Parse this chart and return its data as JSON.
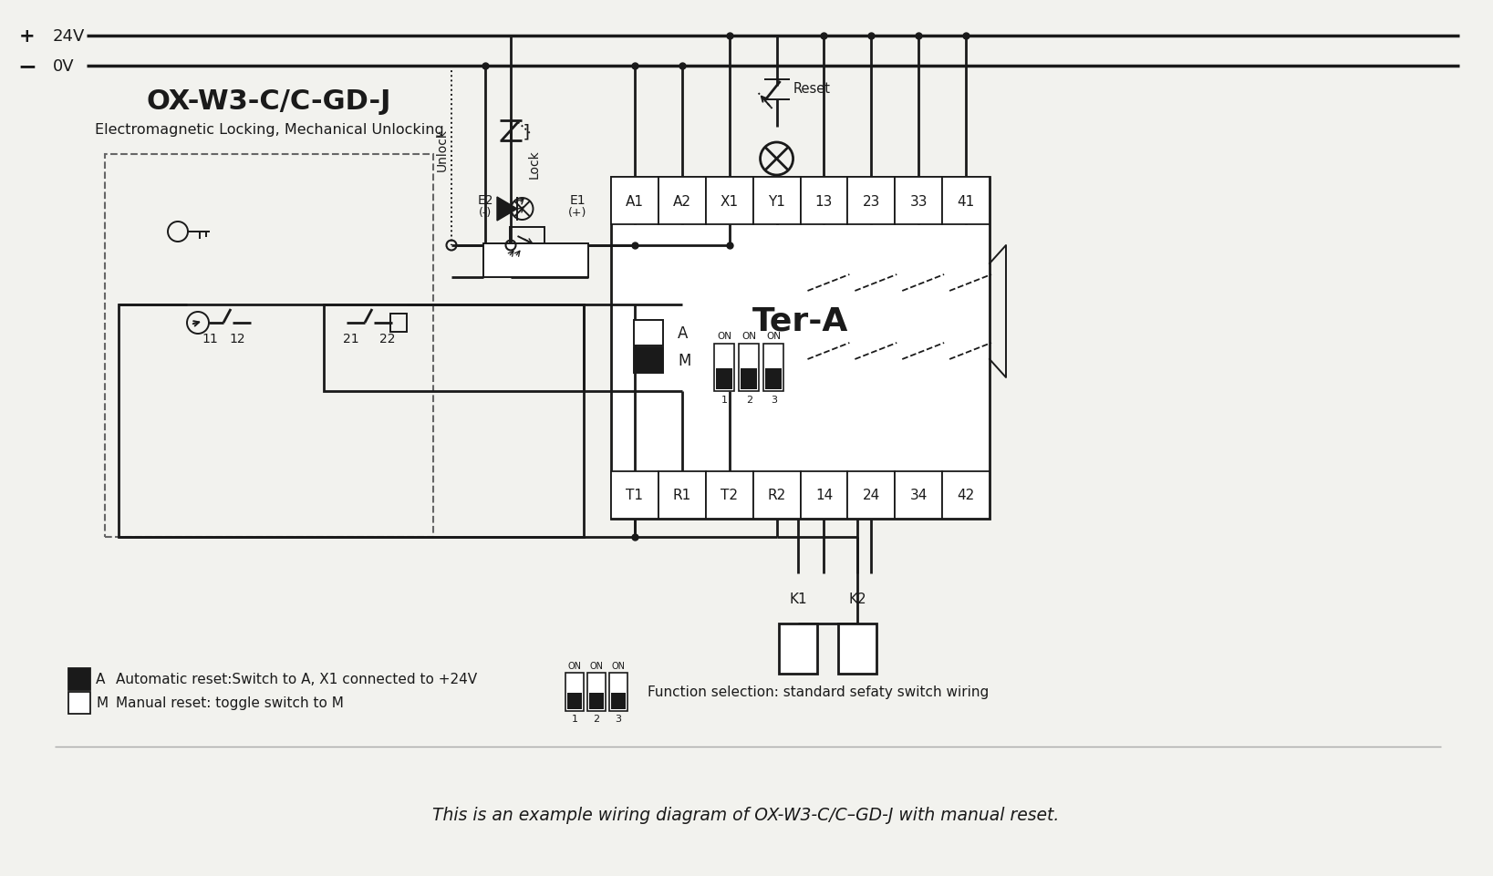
{
  "title": "OX-W3-C/C-GD-J",
  "subtitle": "Electromagnetic Locking, Mechanical Unlocking",
  "bottom_text": "This is an example wiring diagram of OX-W3-C/C–GD-J with manual reset.",
  "legend_auto": "Automatic reset:Switch to A, X1 connected to +24V",
  "legend_manual": "Manual reset: toggle switch to M",
  "legend_function": "Function selection: standard sefaty switch wiring",
  "ter_a_label": "Ter-A",
  "ter_top_labels": [
    "A1",
    "A2",
    "X1",
    "Y1",
    "13",
    "23",
    "33",
    "41"
  ],
  "ter_bot_labels": [
    "T1",
    "R1",
    "T2",
    "R2",
    "14",
    "24",
    "34",
    "42"
  ],
  "bg_color": "#f2f2ee",
  "line_color": "#1a1a1a"
}
